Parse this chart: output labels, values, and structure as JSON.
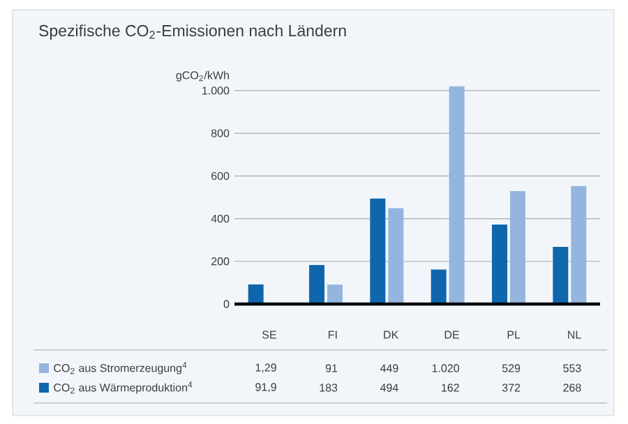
{
  "chart_data": {
    "type": "bar",
    "title": "Spezifische CO$_{2}$-Emissionen nach Ländern",
    "ylabel": "gCO$_{2}$/kWh",
    "categories": [
      "SE",
      "FI",
      "DK",
      "DE",
      "PL",
      "NL"
    ],
    "series": [
      {
        "name": "CO$_{2}$ aus Stromerzeugung$^{4}$",
        "color": "#94b6de",
        "values": [
          1.29,
          91,
          449,
          1020,
          529,
          553
        ],
        "value_labels": [
          "1,29",
          "91",
          "449",
          "1.020",
          "529",
          "553"
        ]
      },
      {
        "name": "CO$_{2}$ aus Wärmeproduktion$^{4}$",
        "color": "#0f66ad",
        "values": [
          91.9,
          183,
          494,
          162,
          372,
          268
        ],
        "value_labels": [
          "91,9",
          "183",
          "494",
          "162",
          "372",
          "268"
        ]
      }
    ],
    "ylim": [
      0,
      1020
    ],
    "yticks": [
      0,
      200,
      400,
      600,
      800,
      {
        "value": 1000,
        "label": "1.000"
      }
    ],
    "grid": "y",
    "legend": "bottom"
  }
}
